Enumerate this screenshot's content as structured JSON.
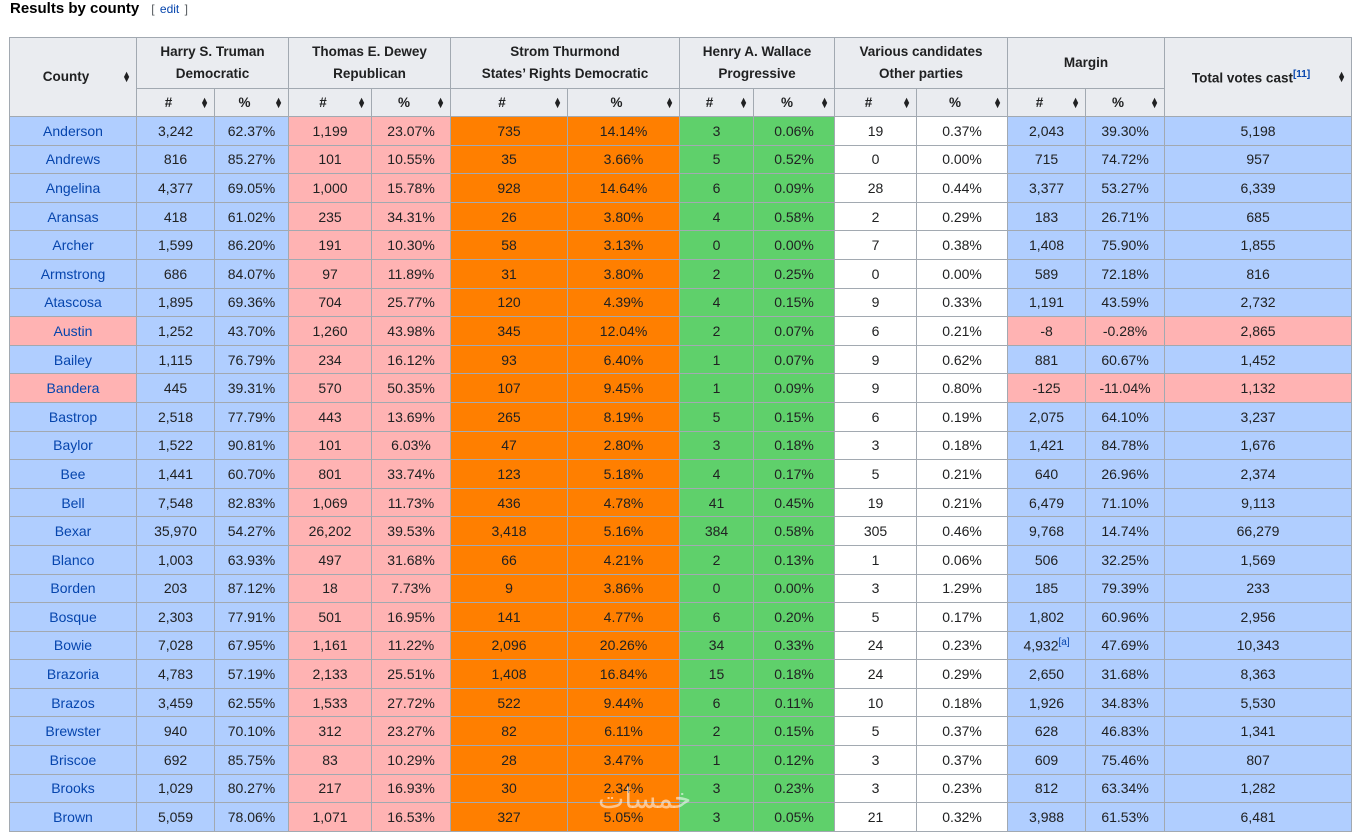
{
  "section": {
    "title": "Results by county",
    "edit_label": "edit",
    "bracket_open": "[",
    "bracket_close": "]"
  },
  "colors": {
    "dem": "#b0ceff",
    "rep": "#ffb3b3",
    "thurmond": "#ff7f00",
    "wallace": "#5fd06b",
    "other": "#ffffff",
    "header": "#eaecf0"
  },
  "header": {
    "county": "County",
    "truman": {
      "name": "Harry S. Truman",
      "party": "Democratic"
    },
    "dewey": {
      "name": "Thomas E. Dewey",
      "party": "Republican"
    },
    "thurmond": {
      "name": "Strom Thurmond",
      "party": "States’ Rights Democratic"
    },
    "wallace": {
      "name": "Henry A. Wallace",
      "party": "Progressive"
    },
    "various": {
      "name": "Various candidates",
      "party": "Other parties"
    },
    "margin": "Margin",
    "total": "Total votes cast",
    "total_ref": "[11]",
    "num": "#",
    "pct": "%"
  },
  "rows": [
    {
      "county": "Anderson",
      "winner": "dem",
      "t_n": "3,242",
      "t_p": "62.37%",
      "d_n": "1,199",
      "d_p": "23.07%",
      "s_n": "735",
      "s_p": "14.14%",
      "w_n": "3",
      "w_p": "0.06%",
      "o_n": "19",
      "o_p": "0.37%",
      "m_n": "2,043",
      "m_p": "39.30%",
      "total": "5,198"
    },
    {
      "county": "Andrews",
      "winner": "dem",
      "t_n": "816",
      "t_p": "85.27%",
      "d_n": "101",
      "d_p": "10.55%",
      "s_n": "35",
      "s_p": "3.66%",
      "w_n": "5",
      "w_p": "0.52%",
      "o_n": "0",
      "o_p": "0.00%",
      "m_n": "715",
      "m_p": "74.72%",
      "total": "957"
    },
    {
      "county": "Angelina",
      "winner": "dem",
      "t_n": "4,377",
      "t_p": "69.05%",
      "d_n": "1,000",
      "d_p": "15.78%",
      "s_n": "928",
      "s_p": "14.64%",
      "w_n": "6",
      "w_p": "0.09%",
      "o_n": "28",
      "o_p": "0.44%",
      "m_n": "3,377",
      "m_p": "53.27%",
      "total": "6,339"
    },
    {
      "county": "Aransas",
      "winner": "dem",
      "t_n": "418",
      "t_p": "61.02%",
      "d_n": "235",
      "d_p": "34.31%",
      "s_n": "26",
      "s_p": "3.80%",
      "w_n": "4",
      "w_p": "0.58%",
      "o_n": "2",
      "o_p": "0.29%",
      "m_n": "183",
      "m_p": "26.71%",
      "total": "685"
    },
    {
      "county": "Archer",
      "winner": "dem",
      "t_n": "1,599",
      "t_p": "86.20%",
      "d_n": "191",
      "d_p": "10.30%",
      "s_n": "58",
      "s_p": "3.13%",
      "w_n": "0",
      "w_p": "0.00%",
      "o_n": "7",
      "o_p": "0.38%",
      "m_n": "1,408",
      "m_p": "75.90%",
      "total": "1,855"
    },
    {
      "county": "Armstrong",
      "winner": "dem",
      "t_n": "686",
      "t_p": "84.07%",
      "d_n": "97",
      "d_p": "11.89%",
      "s_n": "31",
      "s_p": "3.80%",
      "w_n": "2",
      "w_p": "0.25%",
      "o_n": "0",
      "o_p": "0.00%",
      "m_n": "589",
      "m_p": "72.18%",
      "total": "816"
    },
    {
      "county": "Atascosa",
      "winner": "dem",
      "t_n": "1,895",
      "t_p": "69.36%",
      "d_n": "704",
      "d_p": "25.77%",
      "s_n": "120",
      "s_p": "4.39%",
      "w_n": "4",
      "w_p": "0.15%",
      "o_n": "9",
      "o_p": "0.33%",
      "m_n": "1,191",
      "m_p": "43.59%",
      "total": "2,732"
    },
    {
      "county": "Austin",
      "winner": "rep",
      "t_n": "1,252",
      "t_p": "43.70%",
      "d_n": "1,260",
      "d_p": "43.98%",
      "s_n": "345",
      "s_p": "12.04%",
      "w_n": "2",
      "w_p": "0.07%",
      "o_n": "6",
      "o_p": "0.21%",
      "m_n": "-8",
      "m_p": "-0.28%",
      "total": "2,865"
    },
    {
      "county": "Bailey",
      "winner": "dem",
      "t_n": "1,115",
      "t_p": "76.79%",
      "d_n": "234",
      "d_p": "16.12%",
      "s_n": "93",
      "s_p": "6.40%",
      "w_n": "1",
      "w_p": "0.07%",
      "o_n": "9",
      "o_p": "0.62%",
      "m_n": "881",
      "m_p": "60.67%",
      "total": "1,452"
    },
    {
      "county": "Bandera",
      "winner": "rep",
      "t_n": "445",
      "t_p": "39.31%",
      "d_n": "570",
      "d_p": "50.35%",
      "s_n": "107",
      "s_p": "9.45%",
      "w_n": "1",
      "w_p": "0.09%",
      "o_n": "9",
      "o_p": "0.80%",
      "m_n": "-125",
      "m_p": "-11.04%",
      "total": "1,132"
    },
    {
      "county": "Bastrop",
      "winner": "dem",
      "t_n": "2,518",
      "t_p": "77.79%",
      "d_n": "443",
      "d_p": "13.69%",
      "s_n": "265",
      "s_p": "8.19%",
      "w_n": "5",
      "w_p": "0.15%",
      "o_n": "6",
      "o_p": "0.19%",
      "m_n": "2,075",
      "m_p": "64.10%",
      "total": "3,237"
    },
    {
      "county": "Baylor",
      "winner": "dem",
      "t_n": "1,522",
      "t_p": "90.81%",
      "d_n": "101",
      "d_p": "6.03%",
      "s_n": "47",
      "s_p": "2.80%",
      "w_n": "3",
      "w_p": "0.18%",
      "o_n": "3",
      "o_p": "0.18%",
      "m_n": "1,421",
      "m_p": "84.78%",
      "total": "1,676"
    },
    {
      "county": "Bee",
      "winner": "dem",
      "t_n": "1,441",
      "t_p": "60.70%",
      "d_n": "801",
      "d_p": "33.74%",
      "s_n": "123",
      "s_p": "5.18%",
      "w_n": "4",
      "w_p": "0.17%",
      "o_n": "5",
      "o_p": "0.21%",
      "m_n": "640",
      "m_p": "26.96%",
      "total": "2,374"
    },
    {
      "county": "Bell",
      "winner": "dem",
      "t_n": "7,548",
      "t_p": "82.83%",
      "d_n": "1,069",
      "d_p": "11.73%",
      "s_n": "436",
      "s_p": "4.78%",
      "w_n": "41",
      "w_p": "0.45%",
      "o_n": "19",
      "o_p": "0.21%",
      "m_n": "6,479",
      "m_p": "71.10%",
      "total": "9,113"
    },
    {
      "county": "Bexar",
      "winner": "dem",
      "t_n": "35,970",
      "t_p": "54.27%",
      "d_n": "26,202",
      "d_p": "39.53%",
      "s_n": "3,418",
      "s_p": "5.16%",
      "w_n": "384",
      "w_p": "0.58%",
      "o_n": "305",
      "o_p": "0.46%",
      "m_n": "9,768",
      "m_p": "14.74%",
      "total": "66,279"
    },
    {
      "county": "Blanco",
      "winner": "dem",
      "t_n": "1,003",
      "t_p": "63.93%",
      "d_n": "497",
      "d_p": "31.68%",
      "s_n": "66",
      "s_p": "4.21%",
      "w_n": "2",
      "w_p": "0.13%",
      "o_n": "1",
      "o_p": "0.06%",
      "m_n": "506",
      "m_p": "32.25%",
      "total": "1,569"
    },
    {
      "county": "Borden",
      "winner": "dem",
      "t_n": "203",
      "t_p": "87.12%",
      "d_n": "18",
      "d_p": "7.73%",
      "s_n": "9",
      "s_p": "3.86%",
      "w_n": "0",
      "w_p": "0.00%",
      "o_n": "3",
      "o_p": "1.29%",
      "m_n": "185",
      "m_p": "79.39%",
      "total": "233"
    },
    {
      "county": "Bosque",
      "winner": "dem",
      "t_n": "2,303",
      "t_p": "77.91%",
      "d_n": "501",
      "d_p": "16.95%",
      "s_n": "141",
      "s_p": "4.77%",
      "w_n": "6",
      "w_p": "0.20%",
      "o_n": "5",
      "o_p": "0.17%",
      "m_n": "1,802",
      "m_p": "60.96%",
      "total": "2,956"
    },
    {
      "county": "Bowie",
      "winner": "dem",
      "t_n": "7,028",
      "t_p": "67.95%",
      "d_n": "1,161",
      "d_p": "11.22%",
      "s_n": "2,096",
      "s_p": "20.26%",
      "w_n": "34",
      "w_p": "0.33%",
      "o_n": "24",
      "o_p": "0.23%",
      "m_n": "4,932",
      "m_ref": "[a]",
      "m_p": "47.69%",
      "total": "10,343"
    },
    {
      "county": "Brazoria",
      "winner": "dem",
      "t_n": "4,783",
      "t_p": "57.19%",
      "d_n": "2,133",
      "d_p": "25.51%",
      "s_n": "1,408",
      "s_p": "16.84%",
      "w_n": "15",
      "w_p": "0.18%",
      "o_n": "24",
      "o_p": "0.29%",
      "m_n": "2,650",
      "m_p": "31.68%",
      "total": "8,363"
    },
    {
      "county": "Brazos",
      "winner": "dem",
      "t_n": "3,459",
      "t_p": "62.55%",
      "d_n": "1,533",
      "d_p": "27.72%",
      "s_n": "522",
      "s_p": "9.44%",
      "w_n": "6",
      "w_p": "0.11%",
      "o_n": "10",
      "o_p": "0.18%",
      "m_n": "1,926",
      "m_p": "34.83%",
      "total": "5,530"
    },
    {
      "county": "Brewster",
      "winner": "dem",
      "t_n": "940",
      "t_p": "70.10%",
      "d_n": "312",
      "d_p": "23.27%",
      "s_n": "82",
      "s_p": "6.11%",
      "w_n": "2",
      "w_p": "0.15%",
      "o_n": "5",
      "o_p": "0.37%",
      "m_n": "628",
      "m_p": "46.83%",
      "total": "1,341"
    },
    {
      "county": "Briscoe",
      "winner": "dem",
      "t_n": "692",
      "t_p": "85.75%",
      "d_n": "83",
      "d_p": "10.29%",
      "s_n": "28",
      "s_p": "3.47%",
      "w_n": "1",
      "w_p": "0.12%",
      "o_n": "3",
      "o_p": "0.37%",
      "m_n": "609",
      "m_p": "75.46%",
      "total": "807"
    },
    {
      "county": "Brooks",
      "winner": "dem",
      "t_n": "1,029",
      "t_p": "80.27%",
      "d_n": "217",
      "d_p": "16.93%",
      "s_n": "30",
      "s_p": "2.34%",
      "w_n": "3",
      "w_p": "0.23%",
      "o_n": "3",
      "o_p": "0.23%",
      "m_n": "812",
      "m_p": "63.34%",
      "total": "1,282"
    },
    {
      "county": "Brown",
      "winner": "dem",
      "t_n": "5,059",
      "t_p": "78.06%",
      "d_n": "1,071",
      "d_p": "16.53%",
      "s_n": "327",
      "s_p": "5.05%",
      "w_n": "3",
      "w_p": "0.05%",
      "o_n": "21",
      "o_p": "0.32%",
      "m_n": "3,988",
      "m_p": "61.53%",
      "total": "6,481"
    }
  ]
}
